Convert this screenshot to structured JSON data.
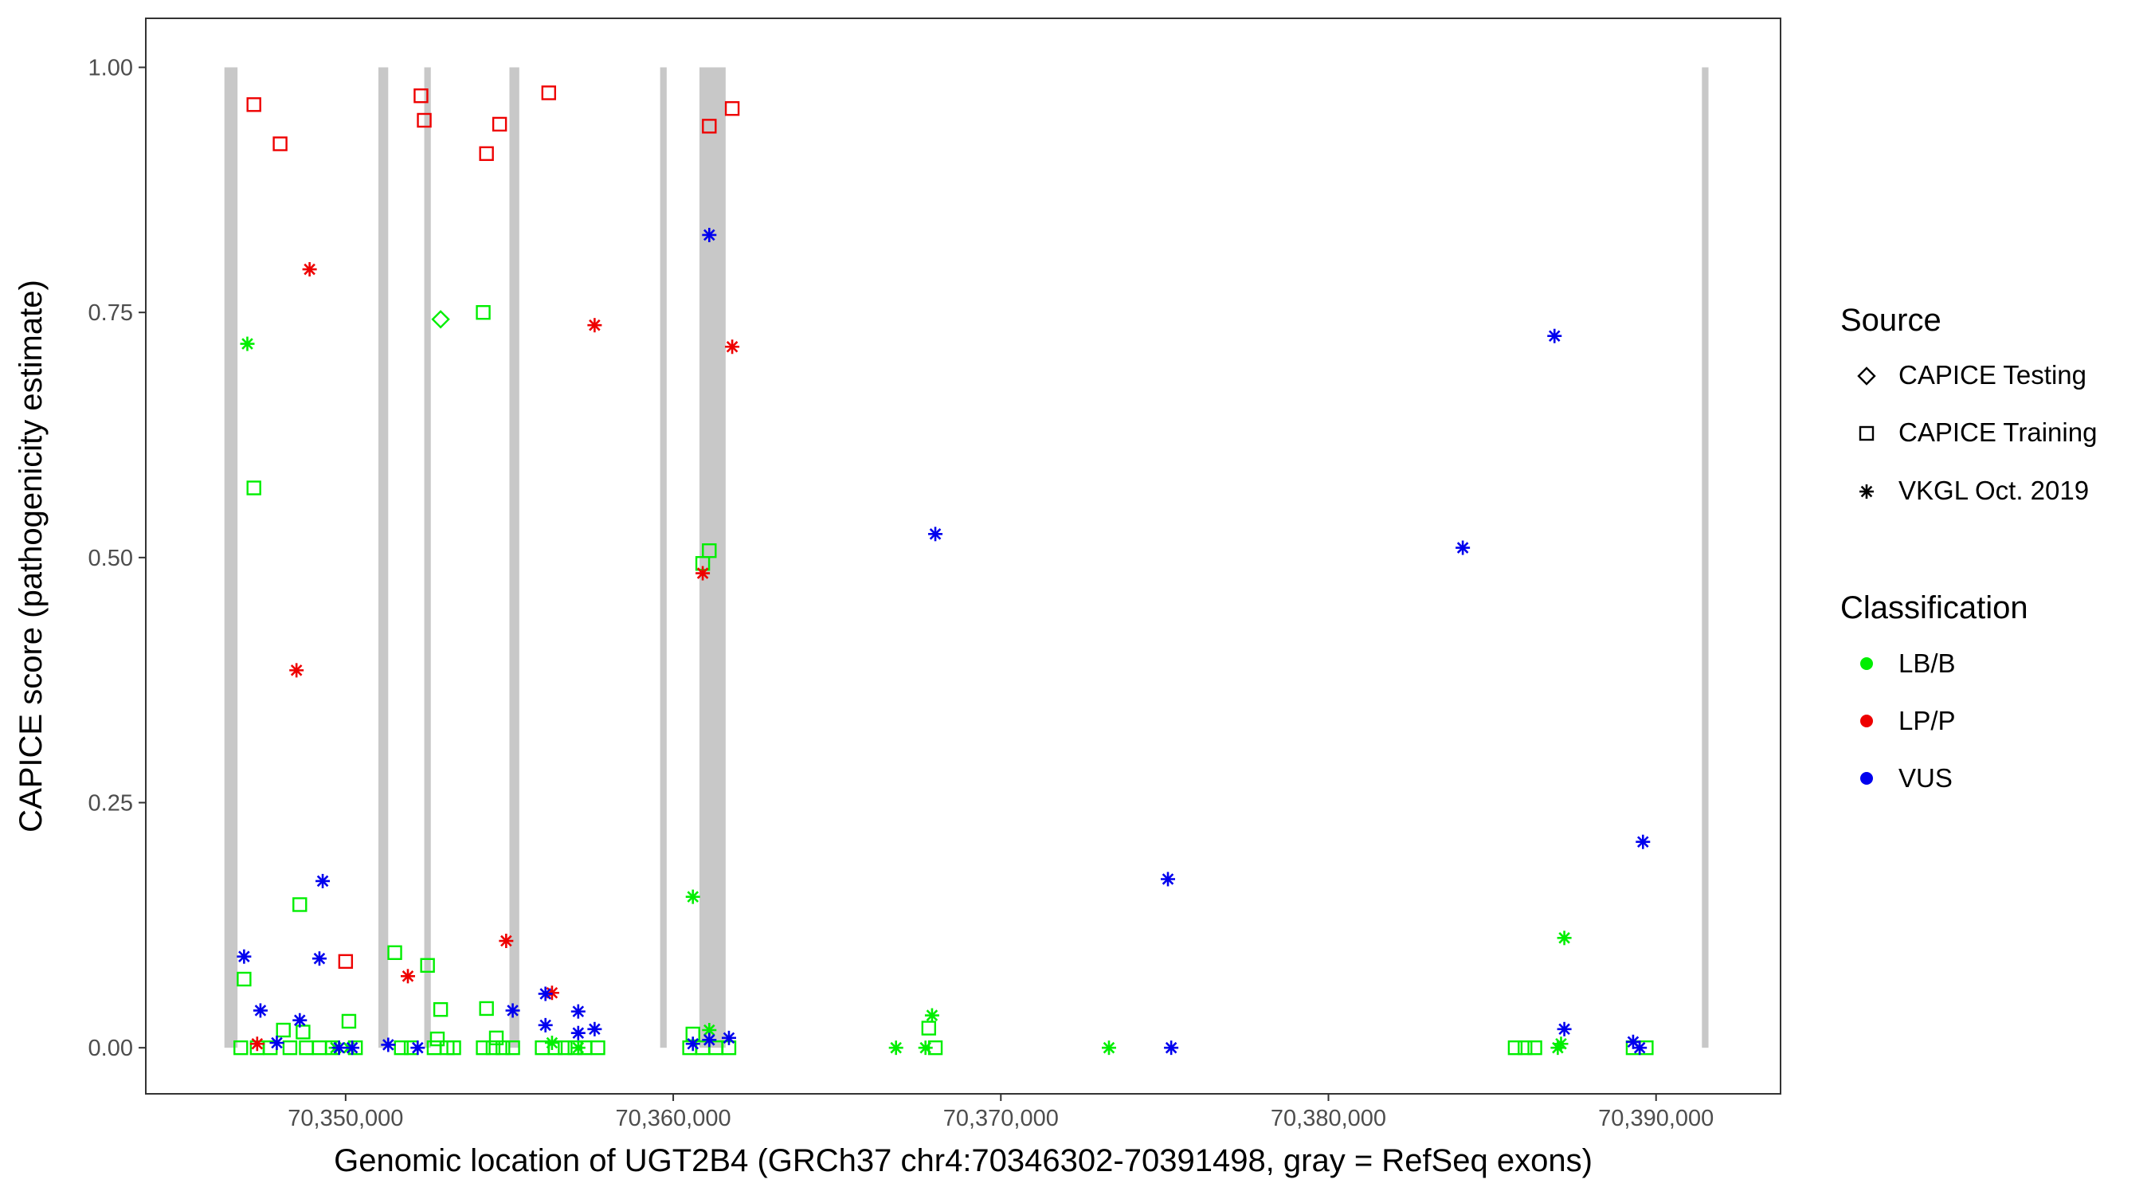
{
  "chart_data": {
    "type": "scatter",
    "xlabel": "Genomic location of UGT2B4 (GRCh37 chr4:70346302-70391498, gray = RefSeq exons)",
    "ylabel": "CAPICE score (pathogenicity estimate)",
    "xlim": [
      70343900,
      70393800
    ],
    "ylim": [
      -0.047,
      1.05
    ],
    "x_ticks": [
      70350000,
      70360000,
      70370000,
      70380000,
      70390000
    ],
    "x_tick_labels": [
      "70,350,000",
      "70,360,000",
      "70,370,000",
      "70,380,000",
      "70,390,000"
    ],
    "y_ticks": [
      0,
      0.25,
      0.5,
      0.75,
      1.0
    ],
    "y_tick_labels": [
      "0.00",
      "0.25",
      "0.50",
      "0.75",
      "1.00"
    ],
    "grid": false,
    "exons": [
      [
        70346300,
        70346700
      ],
      [
        70351000,
        70351300
      ],
      [
        70352400,
        70352600
      ],
      [
        70355000,
        70355300
      ],
      [
        70359600,
        70359800
      ],
      [
        70360800,
        70361600
      ],
      [
        70391400,
        70391600
      ]
    ],
    "colors": {
      "LB/B": "#00ee00",
      "LP/P": "#ee0000",
      "VUS": "#0000ee",
      "exon": "#c8c8c8"
    },
    "legend": {
      "position": "right",
      "source_title": "Source",
      "source_entries": [
        {
          "shape": "diamond",
          "label": "CAPICE Testing"
        },
        {
          "shape": "square",
          "label": "CAPICE Training"
        },
        {
          "shape": "asterisk",
          "label": "VKGL Oct. 2019"
        }
      ],
      "class_title": "Classification",
      "class_entries": [
        {
          "key": "LB/B",
          "label": "LB/B"
        },
        {
          "key": "LP/P",
          "label": "LP/P"
        },
        {
          "key": "VUS",
          "label": "VUS"
        }
      ]
    },
    "series": [
      {
        "name": "CAPICE Training",
        "shape": "square",
        "class": "LP/P",
        "points": [
          [
            70347200,
            0.962
          ],
          [
            70348000,
            0.922
          ],
          [
            70352300,
            0.971
          ],
          [
            70352400,
            0.946
          ],
          [
            70354300,
            0.912
          ],
          [
            70354700,
            0.942
          ],
          [
            70356200,
            0.974
          ],
          [
            70361100,
            0.94
          ],
          [
            70361800,
            0.958
          ],
          [
            70350000,
            0.088
          ]
        ]
      },
      {
        "name": "CAPICE Training",
        "shape": "square",
        "class": "LB/B",
        "points": [
          [
            70347200,
            0.571
          ],
          [
            70354200,
            0.75
          ],
          [
            70348600,
            0.146
          ],
          [
            70346900,
            0.07
          ],
          [
            70351500,
            0.097
          ],
          [
            70352500,
            0.084
          ],
          [
            70352900,
            0.039
          ],
          [
            70354300,
            0.04
          ],
          [
            70350100,
            0.027
          ],
          [
            70361100,
            0.507
          ],
          [
            70360900,
            0.494
          ],
          [
            70367800,
            0.02
          ],
          [
            70348100,
            0.018
          ],
          [
            70348700,
            0.016
          ],
          [
            70354600,
            0.01
          ],
          [
            70352800,
            0.009
          ],
          [
            70360600,
            0.014
          ],
          [
            70346800,
            0.0
          ],
          [
            70347300,
            0.0
          ],
          [
            70347700,
            0.0
          ],
          [
            70348300,
            0.0
          ],
          [
            70348800,
            0.0
          ],
          [
            70349200,
            0.0
          ],
          [
            70349600,
            0.0
          ],
          [
            70350300,
            0.0
          ],
          [
            70351700,
            0.0
          ],
          [
            70352000,
            0.0
          ],
          [
            70352700,
            0.0
          ],
          [
            70353100,
            0.0
          ],
          [
            70353300,
            0.0
          ],
          [
            70354200,
            0.0
          ],
          [
            70354500,
            0.0
          ],
          [
            70354800,
            0.0
          ],
          [
            70355100,
            0.0
          ],
          [
            70356000,
            0.0
          ],
          [
            70356400,
            0.0
          ],
          [
            70356700,
            0.0
          ],
          [
            70357000,
            0.0
          ],
          [
            70357300,
            0.0
          ],
          [
            70357700,
            0.0
          ],
          [
            70360500,
            0.0
          ],
          [
            70360900,
            0.0
          ],
          [
            70361300,
            0.0
          ],
          [
            70361700,
            0.0
          ],
          [
            70368000,
            0.0
          ],
          [
            70385700,
            0.0
          ],
          [
            70386000,
            0.0
          ],
          [
            70386300,
            0.0
          ],
          [
            70389300,
            0.0
          ],
          [
            70389700,
            0.0
          ]
        ]
      },
      {
        "name": "CAPICE Testing",
        "shape": "diamond",
        "class": "LB/B",
        "points": [
          [
            70352900,
            0.743
          ]
        ]
      },
      {
        "name": "VKGL Oct. 2019",
        "shape": "asterisk",
        "class": "LB/B",
        "points": [
          [
            70347000,
            0.718
          ],
          [
            70360600,
            0.154
          ],
          [
            70387200,
            0.112
          ],
          [
            70367900,
            0.033
          ],
          [
            70361100,
            0.018
          ],
          [
            70366800,
            0.0
          ],
          [
            70367700,
            0.0
          ],
          [
            70373300,
            0.0
          ],
          [
            70387000,
            0.0
          ],
          [
            70387100,
            0.004
          ],
          [
            70356300,
            0.005
          ],
          [
            70357100,
            0.0
          ],
          [
            70349700,
            0.0
          ],
          [
            70350100,
            0.0
          ]
        ]
      },
      {
        "name": "VKGL Oct. 2019",
        "shape": "asterisk",
        "class": "LP/P",
        "points": [
          [
            70348900,
            0.794
          ],
          [
            70357600,
            0.737
          ],
          [
            70361800,
            0.715
          ],
          [
            70360900,
            0.484
          ],
          [
            70348500,
            0.385
          ],
          [
            70354900,
            0.109
          ],
          [
            70351900,
            0.073
          ],
          [
            70356300,
            0.056
          ],
          [
            70347300,
            0.004
          ]
        ]
      },
      {
        "name": "VKGL Oct. 2019",
        "shape": "asterisk",
        "class": "VUS",
        "points": [
          [
            70361100,
            0.829
          ],
          [
            70386900,
            0.726
          ],
          [
            70368000,
            0.524
          ],
          [
            70384100,
            0.51
          ],
          [
            70389600,
            0.21
          ],
          [
            70375100,
            0.172
          ],
          [
            70349300,
            0.17
          ],
          [
            70346900,
            0.093
          ],
          [
            70349200,
            0.091
          ],
          [
            70356100,
            0.055
          ],
          [
            70347400,
            0.038
          ],
          [
            70355100,
            0.038
          ],
          [
            70357100,
            0.037
          ],
          [
            70348600,
            0.028
          ],
          [
            70356100,
            0.023
          ],
          [
            70387200,
            0.019
          ],
          [
            70357600,
            0.019
          ],
          [
            70357100,
            0.015
          ],
          [
            70361700,
            0.01
          ],
          [
            70361100,
            0.008
          ],
          [
            70389300,
            0.006
          ],
          [
            70347900,
            0.005
          ],
          [
            70360600,
            0.004
          ],
          [
            70349800,
            0.0
          ],
          [
            70350200,
            0.0
          ],
          [
            70351300,
            0.003
          ],
          [
            70352200,
            0.0
          ],
          [
            70375200,
            0.0
          ],
          [
            70389500,
            0.0
          ]
        ]
      }
    ]
  }
}
